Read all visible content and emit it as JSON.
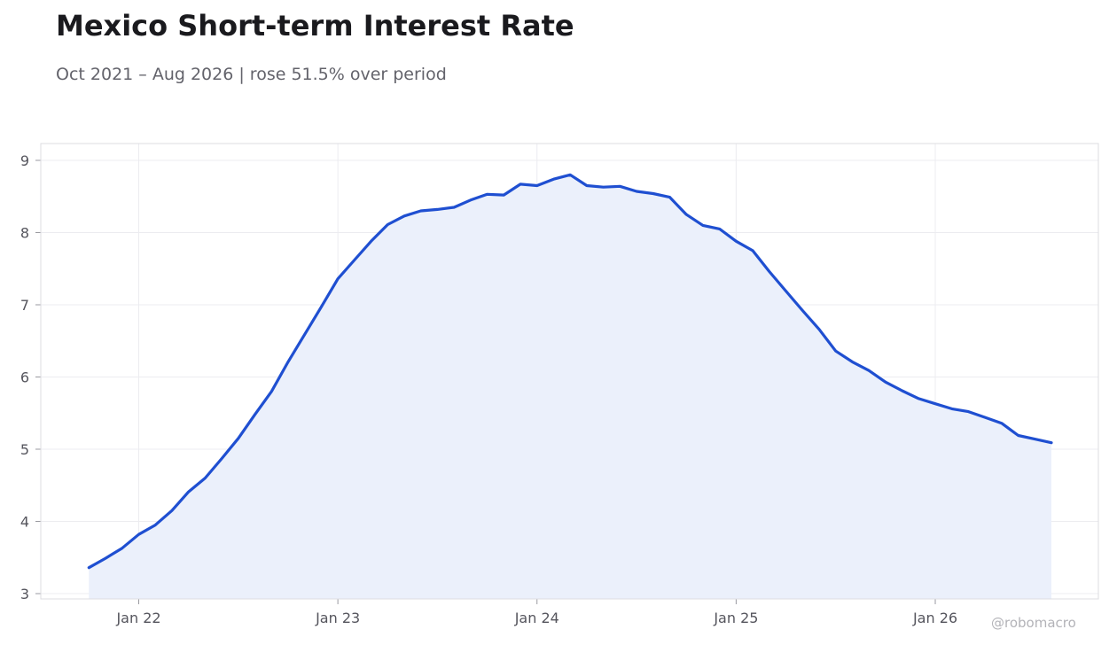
{
  "title": "Mexico Short-term Interest Rate",
  "subtitle": "Oct 2021 – Aug 2026 | rose 51.5% over period",
  "watermark": "@robomacro",
  "colors": {
    "line": "#1f4fd1",
    "fill": "#ebf0fb",
    "grid": "#ececf0",
    "frame": "#dcdce0"
  },
  "chart_data": {
    "type": "area",
    "title": "Mexico Short-term Interest Rate",
    "xlabel": "",
    "ylabel": "",
    "ylim": [
      3,
      9
    ],
    "grid": true,
    "x_ticks": [
      {
        "label": "Jan 22",
        "date": "2022-01"
      },
      {
        "label": "Jan 23",
        "date": "2023-01"
      },
      {
        "label": "Jan 24",
        "date": "2024-01"
      },
      {
        "label": "Jan 25",
        "date": "2025-01"
      },
      {
        "label": "Jan 26",
        "date": "2026-01"
      }
    ],
    "y_ticks": [
      3,
      4,
      5,
      6,
      7,
      8,
      9
    ],
    "series": [
      {
        "x": [
          "2021-10",
          "2021-11",
          "2021-12",
          "2022-01",
          "2022-02",
          "2022-03",
          "2022-04",
          "2022-05",
          "2022-06",
          "2022-07",
          "2022-08",
          "2022-09",
          "2022-10",
          "2022-11",
          "2022-12",
          "2023-01",
          "2023-02",
          "2023-03",
          "2023-04",
          "2023-05",
          "2023-06",
          "2023-07",
          "2023-08",
          "2023-09",
          "2023-10",
          "2023-11",
          "2023-12",
          "2024-01",
          "2024-02",
          "2024-03",
          "2024-04",
          "2024-05",
          "2024-06",
          "2024-07",
          "2024-08",
          "2024-09",
          "2024-10",
          "2024-11",
          "2024-12",
          "2025-01",
          "2025-02",
          "2025-03",
          "2025-04",
          "2025-05",
          "2025-06",
          "2025-07",
          "2025-08",
          "2025-09",
          "2025-10",
          "2025-11",
          "2025-12",
          "2026-01",
          "2026-02",
          "2026-03",
          "2026-04",
          "2026-05",
          "2026-06",
          "2026-07",
          "2026-08"
        ],
        "values": [
          3.36,
          3.49,
          3.63,
          3.82,
          3.95,
          4.15,
          4.41,
          4.6,
          4.87,
          5.15,
          5.48,
          5.8,
          6.21,
          6.59,
          6.97,
          7.36,
          7.62,
          7.88,
          8.11,
          8.23,
          8.3,
          8.32,
          8.35,
          8.45,
          8.53,
          8.52,
          8.67,
          8.65,
          8.74,
          8.8,
          8.65,
          8.63,
          8.64,
          8.57,
          8.54,
          8.49,
          8.25,
          8.1,
          8.05,
          7.88,
          7.75,
          7.46,
          7.19,
          6.92,
          6.66,
          6.36,
          6.21,
          6.09,
          5.93,
          5.81,
          5.7,
          5.63,
          5.56,
          5.52,
          5.44,
          5.36,
          5.19,
          5.14,
          5.09
        ]
      }
    ]
  }
}
